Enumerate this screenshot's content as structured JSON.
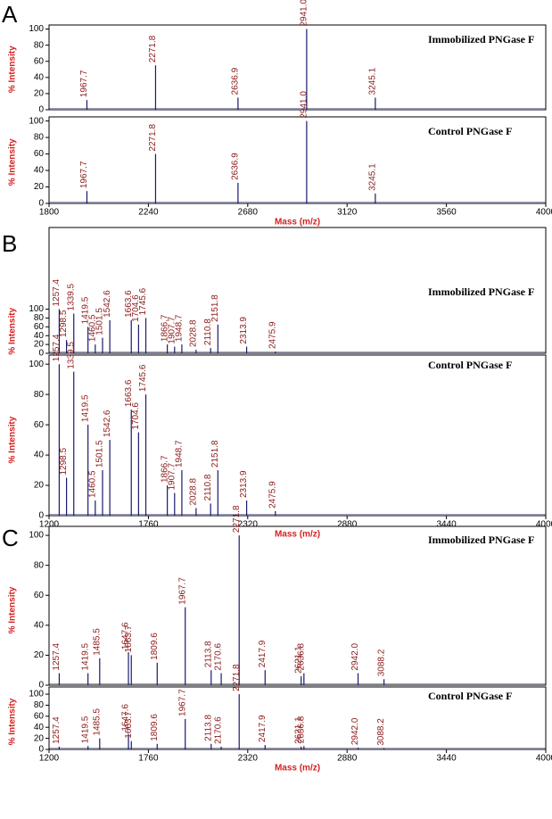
{
  "chart_data": [
    {
      "type": "stem",
      "panel": "A",
      "title": "Immobilized PNGase F",
      "ylabel": "% Intensity",
      "xlim": [
        1800,
        4000
      ],
      "ylim": [
        0,
        105
      ],
      "yticks": [
        0,
        20,
        40,
        60,
        80,
        100
      ],
      "color": "#1a1a6e",
      "x": [
        1967.7,
        2271.8,
        2636.9,
        2941.0,
        3245.1
      ],
      "peak_labels": [
        "1967.7",
        "2271.8",
        "2636.9",
        "2941.0",
        "3245.1"
      ],
      "values": [
        12,
        55,
        15,
        100,
        15
      ]
    },
    {
      "type": "stem",
      "title": "Control PNGase F",
      "ylabel": "% Intensity",
      "xlabel": "Mass (m/z)",
      "xlim": [
        1800,
        4000
      ],
      "xticks": [
        1800,
        2240,
        2680,
        3120,
        3560,
        4000
      ],
      "ylim": [
        0,
        105
      ],
      "yticks": [
        0,
        20,
        40,
        60,
        80,
        100
      ],
      "color": "#1a1a6e",
      "x": [
        1967.7,
        2271.8,
        2636.9,
        2941.0,
        3245.1
      ],
      "peak_labels": [
        "1967.7",
        "2271.8",
        "2636.9",
        "2941.0",
        "3245.1"
      ],
      "values": [
        15,
        60,
        25,
        100,
        12
      ]
    },
    {
      "type": "stem",
      "panel": "B",
      "title": "Immobilized PNGase F",
      "ylabel": "% Intensity",
      "xlim": [
        1200,
        4000
      ],
      "ylim": [
        0,
        285
      ],
      "yticks": [
        0,
        20,
        40,
        60,
        80,
        100
      ],
      "color": "#1a1a6e",
      "x": [
        1257.4,
        1298.5,
        1339.5,
        1419.5,
        1460.5,
        1501.5,
        1542.6,
        1663.6,
        1704.6,
        1745.6,
        1866.7,
        1907.7,
        1948.7,
        2028.8,
        2110.8,
        2151.8,
        2313.9,
        2475.9
      ],
      "peak_labels": [
        "1257.4",
        "1298.5",
        "1339.5",
        "1419.5",
        "1460.5",
        "1501.5",
        "1542.6",
        "1663.6",
        "1704.6",
        "1745.6",
        "1866.7",
        "1907.7",
        "1948.7",
        "2028.8",
        "2110.8",
        "2151.8",
        "2313.9",
        "2475.9"
      ],
      "values": [
        100,
        30,
        90,
        60,
        20,
        35,
        75,
        75,
        65,
        80,
        20,
        15,
        20,
        8,
        12,
        65,
        15,
        4
      ]
    },
    {
      "type": "stem",
      "title": "Control  PNGase F",
      "ylabel": "% Intensity",
      "xlabel": "Mass (m/z)",
      "xlim": [
        1200,
        4000
      ],
      "xticks": [
        1200,
        1760,
        2320,
        2880,
        3440,
        4000
      ],
      "ylim": [
        0,
        106
      ],
      "yticks": [
        0,
        20,
        40,
        60,
        80,
        100
      ],
      "color": "#1a1a6e",
      "x": [
        1257.4,
        1298.5,
        1339.5,
        1419.5,
        1460.5,
        1501.5,
        1542.6,
        1663.6,
        1704.6,
        1745.6,
        1866.7,
        1907.7,
        1948.7,
        2028.8,
        2110.8,
        2151.8,
        2313.9,
        2475.9
      ],
      "peak_labels": [
        "1257.4",
        "1298.5",
        "1339.5",
        "1419.5",
        "1460.5",
        "1501.5",
        "1542.6",
        "1663.6",
        "1704.6",
        "1745.6",
        "1866.7",
        "1907.7",
        "1948.7",
        "2028.8",
        "2110.8",
        "2151.8",
        "2313.9",
        "2475.9"
      ],
      "values": [
        100,
        25,
        95,
        60,
        10,
        30,
        50,
        70,
        55,
        80,
        20,
        15,
        30,
        5,
        8,
        30,
        10,
        3
      ]
    },
    {
      "type": "stem",
      "panel": "C",
      "title": "Immobilized PNGase F",
      "ylabel": "% Intensity",
      "xlim": [
        1200,
        4000
      ],
      "ylim": [
        0,
        106
      ],
      "yticks": [
        0,
        20,
        40,
        60,
        80,
        100
      ],
      "color": "#1a1a6e",
      "x": [
        1257.4,
        1419.5,
        1485.5,
        1647.6,
        1663.7,
        1809.6,
        1967.7,
        2113.8,
        2170.6,
        2271.8,
        2417.9,
        2621.1,
        2636.8,
        2942.0,
        3088.2
      ],
      "peak_labels": [
        "1257.4",
        "1419.5",
        "1485.5",
        "1647.6",
        "1663.7",
        "1809.6",
        "1967.7",
        "2113.8",
        "2170.6",
        "2271.8",
        "2417.9",
        "2621.1",
        "2636.8",
        "2942.0",
        "3088.2"
      ],
      "values": [
        8,
        8,
        18,
        22,
        20,
        15,
        52,
        10,
        8,
        100,
        10,
        6,
        8,
        8,
        4
      ]
    },
    {
      "type": "stem",
      "title": "Control PNGase F",
      "ylabel": "% Intensity",
      "xlabel": "Mass (m/z)",
      "xlim": [
        1200,
        4000
      ],
      "xticks": [
        1200,
        1760,
        2320,
        2880,
        3440,
        4000
      ],
      "ylim": [
        0,
        113
      ],
      "yticks": [
        0,
        20,
        40,
        60,
        80,
        100
      ],
      "color": "#1a1a6e",
      "x": [
        1257.4,
        1419.5,
        1485.5,
        1647.6,
        1663.7,
        1809.6,
        1967.7,
        2113.8,
        2170.6,
        2271.8,
        2417.9,
        2621.1,
        2636.8,
        2942.0,
        3088.2
      ],
      "peak_labels": [
        "1257.4",
        "1419.5",
        "1485.5",
        "1647.6",
        "1663.7",
        "1809.6",
        "1967.7",
        "2113.8",
        "2170.6",
        "2271.8",
        "2417.9",
        "2621.1",
        "2636.8",
        "2942.0",
        "3088.2"
      ],
      "values": [
        5,
        6,
        20,
        28,
        15,
        10,
        55,
        10,
        5,
        100,
        8,
        5,
        6,
        3,
        2
      ]
    }
  ]
}
